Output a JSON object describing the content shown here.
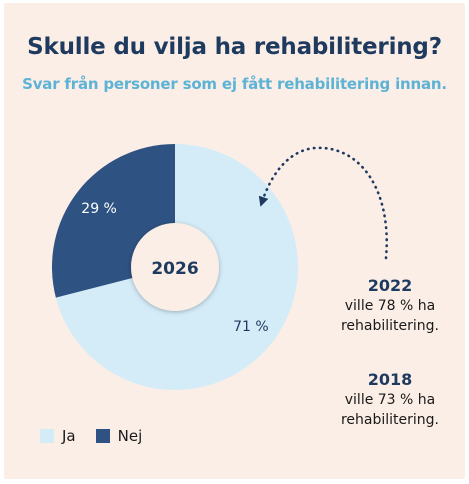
{
  "title": "Skulle du vilja ha rehabilitering?",
  "subtitle": "Svar från personer som ej fått rehabilitering innan.",
  "chart_data": {
    "type": "pie",
    "center_label": "2026",
    "categories": [
      "Ja",
      "Nej"
    ],
    "values": [
      71,
      29
    ],
    "value_labels": [
      "71 %",
      "29 %"
    ],
    "colors": [
      "#d4ecf8",
      "#2e5282"
    ],
    "label_colors": [
      "#1f3a5f",
      "#ffffff"
    ],
    "legend_position": "bottom-left"
  },
  "history": [
    {
      "year": "2022",
      "line1": "ville 78 % ha",
      "line2": "rehabilitering."
    },
    {
      "year": "2018",
      "line1": "ville 73 % ha",
      "line2": "rehabilitering."
    }
  ],
  "legend": [
    {
      "label": "Ja",
      "color": "#d4ecf8"
    },
    {
      "label": "Nej",
      "color": "#2e5282"
    }
  ]
}
